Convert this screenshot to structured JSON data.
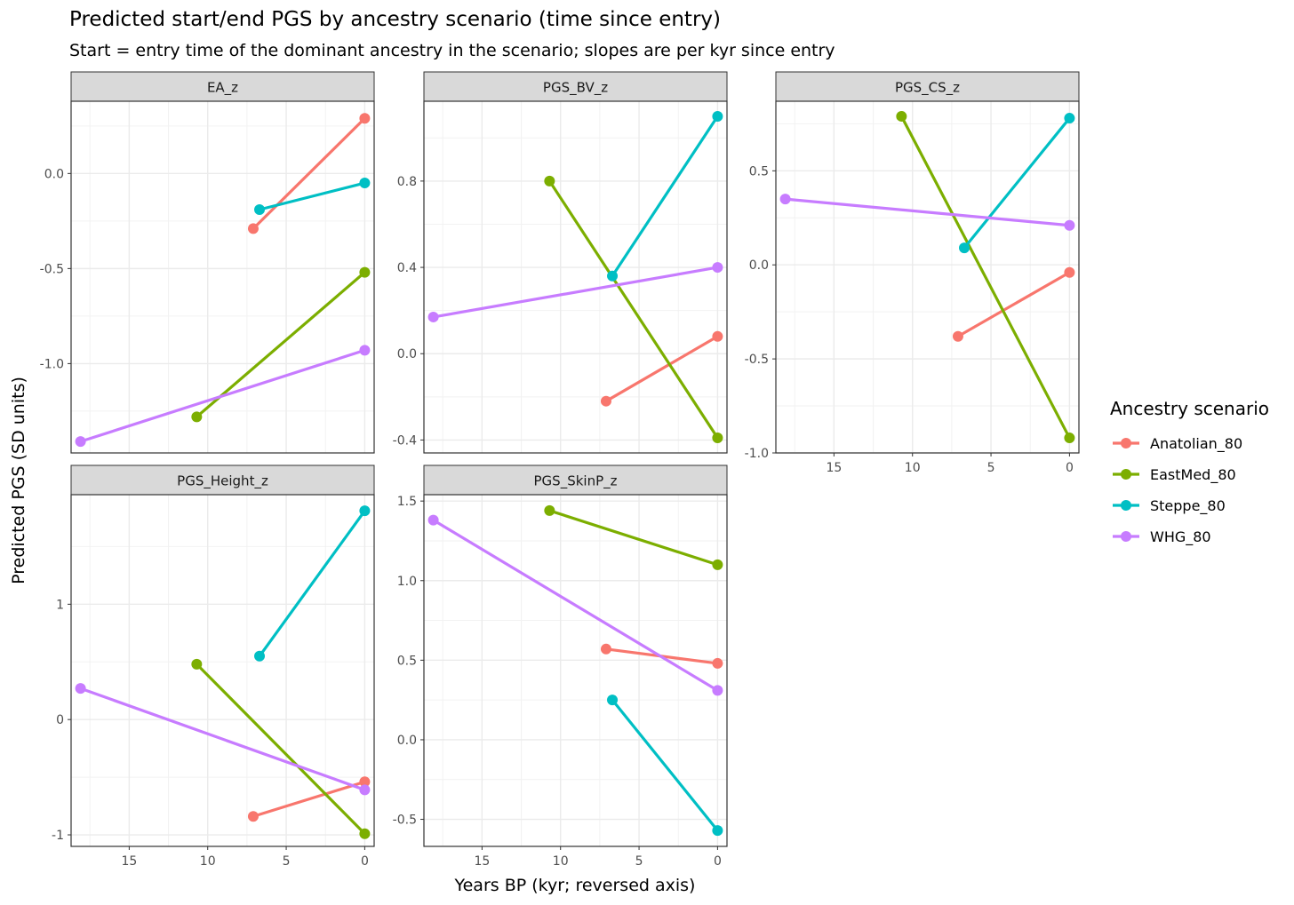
{
  "title": "Predicted start/end PGS by ancestry scenario (time since entry)",
  "subtitle": "Start = entry time of the dominant ancestry in the scenario; slopes are per kyr since entry",
  "xlabel": "Years BP (kyr; reversed axis)",
  "ylabel": "Predicted PGS (SD units)",
  "legend": {
    "title": "Ancestry scenario",
    "position": "right",
    "entries": [
      {
        "name": "Anatolian_80",
        "color": "#F8766D"
      },
      {
        "name": "EastMed_80",
        "color": "#7CAE00"
      },
      {
        "name": "Steppe_80",
        "color": "#00BFC4"
      },
      {
        "name": "WHG_80",
        "color": "#C77CFF"
      }
    ]
  },
  "chart_data": [
    {
      "type": "line",
      "panel": "EA_z",
      "xlim": [
        18.7,
        -0.6
      ],
      "xticks": [
        15,
        10,
        5,
        0
      ],
      "ylim": [
        -1.47,
        0.38
      ],
      "yticks": [
        0.0,
        -0.5,
        -1.0
      ],
      "ytick_labels": [
        "0.0",
        "-0.5",
        "-1.0"
      ],
      "show_xaxis": false,
      "series": [
        {
          "name": "Anatolian_80",
          "x": [
            7.1,
            0
          ],
          "y": [
            -0.29,
            0.29
          ]
        },
        {
          "name": "EastMed_80",
          "x": [
            10.7,
            0
          ],
          "y": [
            -1.28,
            -0.52
          ]
        },
        {
          "name": "Steppe_80",
          "x": [
            6.7,
            0
          ],
          "y": [
            -0.19,
            -0.05
          ]
        },
        {
          "name": "WHG_80",
          "x": [
            18.1,
            0
          ],
          "y": [
            -1.41,
            -0.93
          ]
        }
      ]
    },
    {
      "type": "line",
      "panel": "PGS_BV_z",
      "xlim": [
        18.7,
        -0.6
      ],
      "xticks": [
        15,
        10,
        5,
        0
      ],
      "ylim": [
        -0.46,
        1.17
      ],
      "yticks": [
        0.8,
        0.4,
        0.0,
        -0.4
      ],
      "ytick_labels": [
        "0.8",
        "0.4",
        "0.0",
        "-0.4"
      ],
      "show_xaxis": false,
      "series": [
        {
          "name": "Anatolian_80",
          "x": [
            7.1,
            0
          ],
          "y": [
            -0.22,
            0.08
          ]
        },
        {
          "name": "EastMed_80",
          "x": [
            10.7,
            0
          ],
          "y": [
            0.8,
            -0.39
          ]
        },
        {
          "name": "Steppe_80",
          "x": [
            6.7,
            0
          ],
          "y": [
            0.36,
            1.1
          ]
        },
        {
          "name": "WHG_80",
          "x": [
            18.1,
            0
          ],
          "y": [
            0.17,
            0.4
          ]
        }
      ]
    },
    {
      "type": "line",
      "panel": "PGS_CS_z",
      "xlim": [
        18.7,
        -0.6
      ],
      "xticks": [
        15,
        10,
        5,
        0
      ],
      "ylim": [
        -1.0,
        0.87
      ],
      "yticks": [
        0.5,
        0.0,
        -0.5,
        -1.0
      ],
      "ytick_labels": [
        "0.5",
        "0.0",
        "-0.5",
        "-1.0"
      ],
      "show_xaxis": true,
      "series": [
        {
          "name": "Anatolian_80",
          "x": [
            7.1,
            0
          ],
          "y": [
            -0.38,
            -0.04
          ]
        },
        {
          "name": "EastMed_80",
          "x": [
            10.7,
            0
          ],
          "y": [
            0.79,
            -0.92
          ]
        },
        {
          "name": "Steppe_80",
          "x": [
            6.7,
            0
          ],
          "y": [
            0.09,
            0.78
          ]
        },
        {
          "name": "WHG_80",
          "x": [
            18.1,
            0
          ],
          "y": [
            0.35,
            0.21
          ]
        }
      ]
    },
    {
      "type": "line",
      "panel": "PGS_Height_z",
      "xlim": [
        18.7,
        -0.6
      ],
      "xticks": [
        15,
        10,
        5,
        0
      ],
      "ylim": [
        -1.1,
        1.95
      ],
      "yticks": [
        1,
        0,
        -1
      ],
      "ytick_labels": [
        "1",
        "0",
        "-1"
      ],
      "show_xaxis": true,
      "series": [
        {
          "name": "Anatolian_80",
          "x": [
            7.1,
            0
          ],
          "y": [
            -0.84,
            -0.54
          ]
        },
        {
          "name": "EastMed_80",
          "x": [
            10.7,
            0
          ],
          "y": [
            0.48,
            -0.99
          ]
        },
        {
          "name": "Steppe_80",
          "x": [
            6.7,
            0
          ],
          "y": [
            0.55,
            1.81
          ]
        },
        {
          "name": "WHG_80",
          "x": [
            18.1,
            0
          ],
          "y": [
            0.27,
            -0.61
          ]
        }
      ]
    },
    {
      "type": "line",
      "panel": "PGS_SkinP_z",
      "xlim": [
        18.7,
        -0.6
      ],
      "xticks": [
        15,
        10,
        5,
        0
      ],
      "ylim": [
        -0.67,
        1.54
      ],
      "yticks": [
        1.5,
        1.0,
        0.5,
        0.0,
        -0.5
      ],
      "ytick_labels": [
        "1.5",
        "1.0",
        "0.5",
        "0.0",
        "-0.5"
      ],
      "show_xaxis": true,
      "series": [
        {
          "name": "Anatolian_80",
          "x": [
            7.1,
            0
          ],
          "y": [
            0.57,
            0.48
          ]
        },
        {
          "name": "EastMed_80",
          "x": [
            10.7,
            0
          ],
          "y": [
            1.44,
            1.1
          ]
        },
        {
          "name": "Steppe_80",
          "x": [
            6.7,
            0
          ],
          "y": [
            0.25,
            -0.57
          ]
        },
        {
          "name": "WHG_80",
          "x": [
            18.1,
            0
          ],
          "y": [
            1.38,
            0.31
          ]
        }
      ]
    }
  ]
}
